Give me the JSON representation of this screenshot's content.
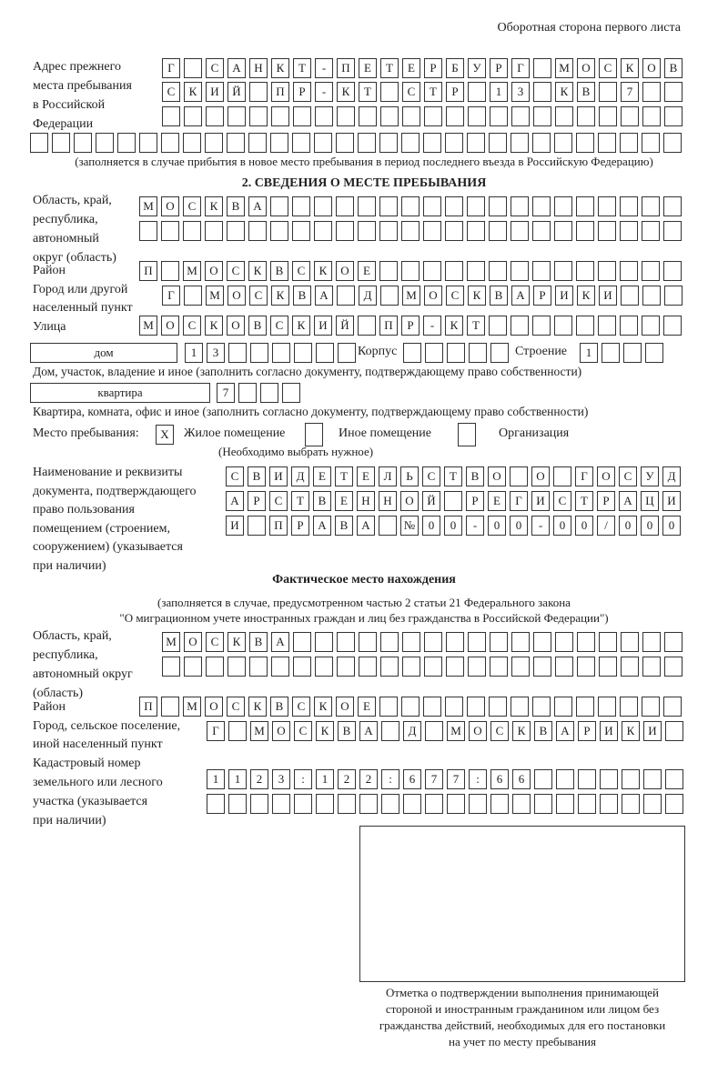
{
  "header": {
    "page_side": "Оборотная сторона первого листа"
  },
  "previous_address": {
    "label": "Адрес прежнего\nместа пребывания\nв Российской\nФедерации",
    "rows": [
      [
        "Г",
        "",
        "С",
        "А",
        "Н",
        "К",
        "Т",
        "-",
        "П",
        "Е",
        "Т",
        "Е",
        "Р",
        "Б",
        "У",
        "Р",
        "Г",
        "",
        "М",
        "О",
        "С",
        "К",
        "О",
        "В"
      ],
      [
        "С",
        "К",
        "И",
        "Й",
        "",
        "П",
        "Р",
        "-",
        "К",
        "Т",
        "",
        "С",
        "Т",
        "Р",
        "",
        "1",
        "3",
        "",
        "К",
        "В",
        "",
        "7",
        "",
        ""
      ],
      [
        "",
        "",
        "",
        "",
        "",
        "",
        "",
        "",
        "",
        "",
        "",
        "",
        "",
        "",
        "",
        "",
        "",
        "",
        "",
        "",
        "",
        "",
        "",
        ""
      ],
      [
        "",
        "",
        "",
        "",
        "",
        "",
        "",
        "",
        "",
        "",
        "",
        "",
        "",
        "",
        "",
        "",
        "",
        "",
        "",
        "",
        "",
        "",
        "",
        "",
        "",
        "",
        "",
        "",
        "",
        ""
      ]
    ],
    "note": "(заполняется в случае прибытия в новое место пребывания в период последнего въезда в Российскую Федерацию)"
  },
  "section2": {
    "title": "2. СВЕДЕНИЯ О МЕСТЕ ПРЕБЫВАНИЯ",
    "region": {
      "label": "Область, край,\nреспублика,\nавтономный\nокруг (область)",
      "rows": [
        [
          "М",
          "О",
          "С",
          "К",
          "В",
          "А",
          "",
          "",
          "",
          "",
          "",
          "",
          "",
          "",
          "",
          "",
          "",
          "",
          "",
          "",
          "",
          "",
          "",
          "",
          ""
        ],
        [
          "",
          "",
          "",
          "",
          "",
          "",
          "",
          "",
          "",
          "",
          "",
          "",
          "",
          "",
          "",
          "",
          "",
          "",
          "",
          "",
          "",
          "",
          "",
          "",
          ""
        ]
      ]
    },
    "district": {
      "label": "Район",
      "cells": [
        "П",
        "",
        "М",
        "О",
        "С",
        "К",
        "В",
        "С",
        "К",
        "О",
        "Е",
        "",
        "",
        "",
        "",
        "",
        "",
        "",
        "",
        "",
        "",
        "",
        "",
        "",
        ""
      ]
    },
    "city": {
      "label": "Город или другой\nнаселенный пункт",
      "cells": [
        "Г",
        "",
        "М",
        "О",
        "С",
        "К",
        "В",
        "А",
        "",
        "Д",
        "",
        "М",
        "О",
        "С",
        "К",
        "В",
        "А",
        "Р",
        "И",
        "К",
        "И",
        "",
        "",
        ""
      ]
    },
    "street": {
      "label": "Улица",
      "cells": [
        "М",
        "О",
        "С",
        "К",
        "О",
        "В",
        "С",
        "К",
        "И",
        "Й",
        "",
        "П",
        "Р",
        "-",
        "К",
        "Т",
        "",
        "",
        "",
        "",
        "",
        "",
        "",
        "",
        ""
      ]
    },
    "house": {
      "type": "дом",
      "cells": [
        "1",
        "3",
        "",
        "",
        "",
        "",
        "",
        ""
      ],
      "korpus_label": "Корпус",
      "korpus_cells": [
        "",
        "",
        "",
        "",
        ""
      ],
      "building_label": "Строение",
      "building_cells": [
        "1",
        "",
        "",
        ""
      ],
      "note": "Дом, участок, владение и иное (заполнить согласно документу, подтверждающему право собственности)"
    },
    "apartment": {
      "type": "квартира",
      "cells": [
        "7",
        "",
        "",
        ""
      ],
      "note": "Квартира, комната, офис и иное (заполнить согласно документу, подтверждающему право собственности)"
    },
    "place": {
      "label": "Место пребывания:",
      "options": [
        {
          "mark": "X",
          "label": "Жилое помещение"
        },
        {
          "mark": "",
          "label": "Иное помещение"
        },
        {
          "mark": "",
          "label": "Организация"
        }
      ],
      "hint": "(Необходимо выбрать нужное)"
    },
    "document": {
      "label": "Наименование и реквизиты\nдокумента, подтверждающего\nправо пользования\nпомещением (строением,\nсооружением) (указывается\nпри наличии)",
      "rows": [
        [
          "С",
          "В",
          "И",
          "Д",
          "Е",
          "Т",
          "Е",
          "Л",
          "Ь",
          "С",
          "Т",
          "В",
          "О",
          "",
          "О",
          "",
          "Г",
          "О",
          "С",
          "У",
          "Д"
        ],
        [
          "А",
          "Р",
          "С",
          "Т",
          "В",
          "Е",
          "Н",
          "Н",
          "О",
          "Й",
          "",
          "Р",
          "Е",
          "Г",
          "И",
          "С",
          "Т",
          "Р",
          "А",
          "Ц",
          "И"
        ],
        [
          "И",
          "",
          "П",
          "Р",
          "А",
          "В",
          "А",
          "",
          "№",
          "0",
          "0",
          "-",
          "0",
          "0",
          "-",
          "0",
          "0",
          "/",
          "0",
          "0",
          "0"
        ]
      ]
    }
  },
  "actual": {
    "title": "Фактическое место нахождения",
    "subtitle1": "(заполняется в случае, предусмотренном частью 2 статьи 21 Федерального закона",
    "subtitle2": "\"О миграционном учете иностранных граждан и лиц без гражданства в Российской Федерации\")",
    "region": {
      "label": "Область, край,\nреспублика,\nавтономный округ\n(область)",
      "rows": [
        [
          "М",
          "О",
          "С",
          "К",
          "В",
          "А",
          "",
          "",
          "",
          "",
          "",
          "",
          "",
          "",
          "",
          "",
          "",
          "",
          "",
          "",
          "",
          "",
          "",
          ""
        ],
        [
          "",
          "",
          "",
          "",
          "",
          "",
          "",
          "",
          "",
          "",
          "",
          "",
          "",
          "",
          "",
          "",
          "",
          "",
          "",
          "",
          "",
          "",
          "",
          ""
        ]
      ]
    },
    "district": {
      "label": "Район",
      "cells": [
        "П",
        "",
        "М",
        "О",
        "С",
        "К",
        "В",
        "С",
        "К",
        "О",
        "Е",
        "",
        "",
        "",
        "",
        "",
        "",
        "",
        "",
        "",
        "",
        "",
        "",
        "",
        ""
      ]
    },
    "city": {
      "label": "Город, сельское поселение,\nиной населенный пункт",
      "cells": [
        "Г",
        "",
        "М",
        "О",
        "С",
        "К",
        "В",
        "А",
        "",
        "Д",
        "",
        "М",
        "О",
        "С",
        "К",
        "В",
        "А",
        "Р",
        "И",
        "К",
        "И",
        ""
      ]
    },
    "cadastral": {
      "label": "Кадастровый номер\nземельного или лесного\nучастка (указывается\nпри наличии)",
      "rows": [
        [
          "1",
          "1",
          "2",
          "3",
          ":",
          "1",
          "2",
          "2",
          ":",
          "6",
          "7",
          "7",
          ":",
          "6",
          "6",
          "",
          "",
          "",
          "",
          "",
          "",
          ""
        ],
        [
          "",
          "",
          "",
          "",
          "",
          "",
          "",
          "",
          "",
          "",
          "",
          "",
          "",
          "",
          "",
          "",
          "",
          "",
          "",
          "",
          "",
          ""
        ]
      ]
    }
  },
  "stamp": {
    "caption": "Отметка о подтверждении выполнения принимающей\nстороной и иностранным гражданином или лицом без\nгражданства действий, необходимых для его постановки\nна учет по месту пребывания"
  }
}
